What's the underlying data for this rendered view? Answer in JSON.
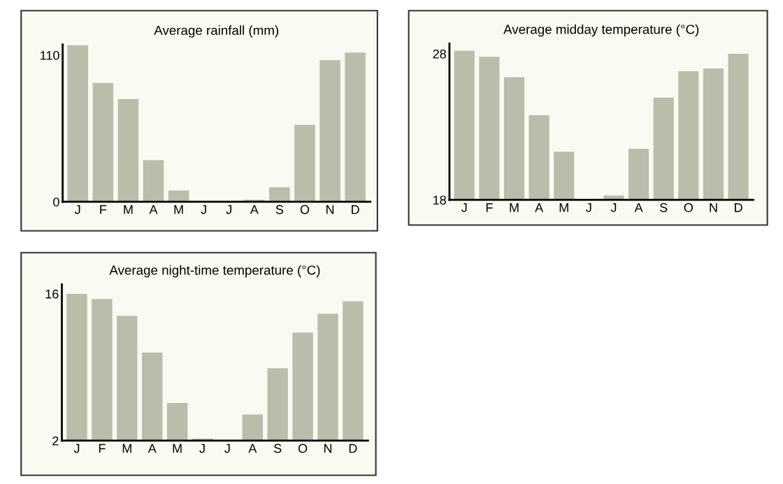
{
  "chart_data": [
    {
      "type": "bar",
      "title": "Average rainfall (mm)",
      "categories": [
        "J",
        "F",
        "M",
        "A",
        "M",
        "J",
        "J",
        "A",
        "S",
        "O",
        "N",
        "D"
      ],
      "values": [
        117.5,
        89.2,
        77.2,
        31.3,
        8.5,
        0,
        0,
        1.6,
        10.9,
        57.8,
        106.2,
        112
      ],
      "color": "#bbbcaa",
      "ylim": [
        0,
        118
      ],
      "yticks": [
        0,
        110
      ],
      "grid": false
    },
    {
      "type": "bar",
      "title": "Average midday temperature (°C)",
      "categories": [
        "J",
        "F",
        "M",
        "A",
        "M",
        "J",
        "J",
        "A",
        "S",
        "O",
        "N",
        "D"
      ],
      "values": [
        28.2,
        27.8,
        26.4,
        23.8,
        21.3,
        18,
        18.3,
        21.5,
        25.0,
        26.8,
        27.0,
        28.0
      ],
      "color": "#bbbcaa",
      "ylim": [
        18,
        28.7
      ],
      "yticks": [
        18,
        28
      ],
      "grid": false
    },
    {
      "type": "bar",
      "title": "Average night-time temperature (°C)",
      "categories": [
        "J",
        "F",
        "M",
        "A",
        "M",
        "J",
        "J",
        "A",
        "S",
        "O",
        "N",
        "D"
      ],
      "values": [
        16.0,
        15.5,
        13.9,
        10.4,
        5.6,
        2.2,
        2.0,
        4.5,
        8.9,
        12.3,
        14.1,
        15.3
      ],
      "color": "#bbbcaa",
      "ylim": [
        2,
        16.9
      ],
      "yticks": [
        2,
        16
      ],
      "grid": false
    }
  ]
}
